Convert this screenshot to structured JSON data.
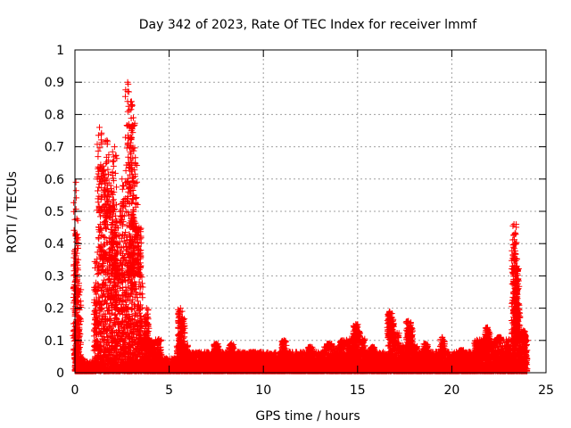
{
  "chart_data": {
    "type": "scatter",
    "title": "Day 342 of 2023, Rate Of TEC Index for receiver lmmf",
    "xlabel": "GPS time / hours",
    "ylabel": "ROTI / TECUs",
    "xlim": [
      0,
      25
    ],
    "ylim": [
      0,
      1
    ],
    "xticks": [
      0,
      5,
      10,
      15,
      20,
      25
    ],
    "yticks": [
      0,
      0.1,
      0.2,
      0.3,
      0.4,
      0.5,
      0.6,
      0.7,
      0.8,
      0.9,
      1
    ],
    "grid": true,
    "marker": "+",
    "color": "#ff0000",
    "density_profile": [
      {
        "x_range": [
          0.0,
          0.5
        ],
        "base_max": 0.04,
        "spikes": [
          [
            0.02,
            0.43
          ],
          [
            0.05,
            0.59
          ],
          [
            0.1,
            0.37
          ],
          [
            0.2,
            0.27
          ]
        ]
      },
      {
        "x_range": [
          0.5,
          1.0
        ],
        "base_max": 0.03,
        "spikes": []
      },
      {
        "x_range": [
          1.0,
          2.0
        ],
        "base_max": 0.35,
        "spikes": [
          [
            1.3,
            0.76
          ],
          [
            1.5,
            0.64
          ],
          [
            1.7,
            0.72
          ],
          [
            1.9,
            0.58
          ]
        ]
      },
      {
        "x_range": [
          2.0,
          2.6
        ],
        "base_max": 0.3,
        "spikes": [
          [
            2.1,
            0.7
          ],
          [
            2.2,
            0.47
          ],
          [
            2.5,
            0.6
          ]
        ]
      },
      {
        "x_range": [
          2.6,
          3.6
        ],
        "base_max": 0.3,
        "spikes": [
          [
            2.8,
            0.9
          ],
          [
            2.9,
            0.76
          ],
          [
            3.0,
            0.84
          ],
          [
            3.1,
            0.79
          ],
          [
            3.2,
            0.65
          ],
          [
            3.4,
            0.45
          ]
        ]
      },
      {
        "x_range": [
          3.6,
          4.6
        ],
        "base_max": 0.1,
        "spikes": [
          [
            3.8,
            0.2
          ]
        ]
      },
      {
        "x_range": [
          4.6,
          5.4
        ],
        "base_max": 0.04,
        "spikes": []
      },
      {
        "x_range": [
          5.4,
          6.0
        ],
        "base_max": 0.08,
        "spikes": [
          [
            5.6,
            0.2
          ],
          [
            5.7,
            0.17
          ]
        ]
      },
      {
        "x_range": [
          6.0,
          13.2
        ],
        "base_max": 0.06,
        "spikes": [
          [
            7.5,
            0.09
          ],
          [
            8.3,
            0.09
          ],
          [
            11.1,
            0.1
          ],
          [
            12.5,
            0.08
          ]
        ]
      },
      {
        "x_range": [
          13.2,
          14.4
        ],
        "base_max": 0.08,
        "spikes": [
          [
            13.5,
            0.09
          ],
          [
            14.2,
            0.1
          ]
        ]
      },
      {
        "x_range": [
          14.4,
          15.4
        ],
        "base_max": 0.1,
        "spikes": [
          [
            14.9,
            0.15
          ],
          [
            15.0,
            0.13
          ]
        ]
      },
      {
        "x_range": [
          15.4,
          16.6
        ],
        "base_max": 0.06,
        "spikes": [
          [
            15.8,
            0.08
          ]
        ]
      },
      {
        "x_range": [
          16.6,
          17.2
        ],
        "base_max": 0.12,
        "spikes": [
          [
            16.7,
            0.19
          ],
          [
            16.8,
            0.17
          ]
        ]
      },
      {
        "x_range": [
          17.2,
          18.2
        ],
        "base_max": 0.08,
        "spikes": [
          [
            17.7,
            0.16
          ],
          [
            17.8,
            0.14
          ]
        ]
      },
      {
        "x_range": [
          18.2,
          21.2
        ],
        "base_max": 0.06,
        "spikes": [
          [
            18.6,
            0.09
          ],
          [
            19.5,
            0.11
          ],
          [
            20.5,
            0.07
          ]
        ]
      },
      {
        "x_range": [
          21.2,
          22.2
        ],
        "base_max": 0.1,
        "spikes": [
          [
            21.9,
            0.14
          ]
        ]
      },
      {
        "x_range": [
          22.2,
          23.2
        ],
        "base_max": 0.1,
        "spikes": [
          [
            22.5,
            0.11
          ]
        ]
      },
      {
        "x_range": [
          23.2,
          23.6
        ],
        "base_max": 0.1,
        "spikes": [
          [
            23.3,
            0.46
          ],
          [
            23.35,
            0.43
          ],
          [
            23.4,
            0.4
          ],
          [
            23.45,
            0.33
          ],
          [
            23.4,
            0.29
          ],
          [
            23.5,
            0.2
          ]
        ]
      },
      {
        "x_range": [
          23.6,
          24.0
        ],
        "base_max": 0.1,
        "spikes": [
          [
            23.8,
            0.13
          ],
          [
            23.9,
            0.1
          ]
        ]
      }
    ]
  }
}
